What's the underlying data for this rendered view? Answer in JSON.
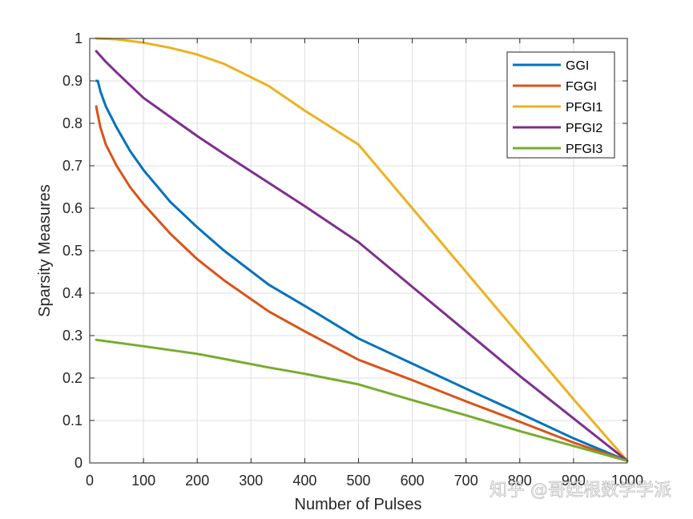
{
  "chart_data": {
    "type": "line",
    "title": "",
    "xlabel": "Number of Pulses",
    "ylabel": "Sparsity Measures",
    "xlim": [
      0,
      1000
    ],
    "ylim": [
      0,
      1
    ],
    "xticks": [
      0,
      100,
      200,
      300,
      400,
      500,
      600,
      700,
      800,
      900,
      1000
    ],
    "yticks": [
      0,
      0.1,
      0.2,
      0.3,
      0.4,
      0.5,
      0.6,
      0.7,
      0.8,
      0.9,
      1
    ],
    "grid": true,
    "legend_position": "top-right",
    "series": [
      {
        "name": "GGI",
        "color": "#0072BD",
        "x": [
          12,
          15,
          20,
          30,
          50,
          75,
          100,
          150,
          200,
          250,
          333,
          400,
          500,
          600,
          700,
          800,
          900,
          1000
        ],
        "y": [
          0.9,
          0.9,
          0.875,
          0.84,
          0.79,
          0.735,
          0.69,
          0.615,
          0.555,
          0.5,
          0.42,
          0.37,
          0.293,
          0.234,
          0.175,
          0.117,
          0.058,
          0.005
        ]
      },
      {
        "name": "FGGI",
        "color": "#D95319",
        "x": [
          12,
          15,
          20,
          30,
          50,
          75,
          100,
          150,
          200,
          250,
          333,
          400,
          500,
          600,
          700,
          800,
          900,
          1000
        ],
        "y": [
          0.84,
          0.82,
          0.79,
          0.75,
          0.7,
          0.65,
          0.61,
          0.54,
          0.48,
          0.43,
          0.357,
          0.31,
          0.243,
          0.195,
          0.145,
          0.097,
          0.048,
          0.005
        ]
      },
      {
        "name": "PFGI1",
        "color": "#EDB120",
        "x": [
          12,
          50,
          100,
          150,
          200,
          250,
          333,
          400,
          500,
          600,
          700,
          800,
          900,
          1000
        ],
        "y": [
          1.0,
          0.998,
          0.99,
          0.978,
          0.962,
          0.94,
          0.888,
          0.83,
          0.75,
          0.6,
          0.45,
          0.3,
          0.15,
          0.005
        ]
      },
      {
        "name": "PFGI2",
        "color": "#7E2F8E",
        "x": [
          12,
          30,
          50,
          75,
          100,
          150,
          200,
          250,
          333,
          400,
          500,
          600,
          700,
          800,
          900,
          1000
        ],
        "y": [
          0.97,
          0.945,
          0.92,
          0.89,
          0.86,
          0.815,
          0.77,
          0.728,
          0.66,
          0.605,
          0.52,
          0.415,
          0.31,
          0.205,
          0.105,
          0.005
        ]
      },
      {
        "name": "PFGI3",
        "color": "#77AC30",
        "x": [
          12,
          100,
          200,
          250,
          333,
          400,
          500,
          600,
          700,
          800,
          900,
          1000
        ],
        "y": [
          0.29,
          0.275,
          0.257,
          0.245,
          0.225,
          0.21,
          0.185,
          0.148,
          0.112,
          0.075,
          0.04,
          0.005
        ]
      }
    ]
  },
  "watermark": {
    "text": "知乎 @哥廷根数学学派"
  }
}
